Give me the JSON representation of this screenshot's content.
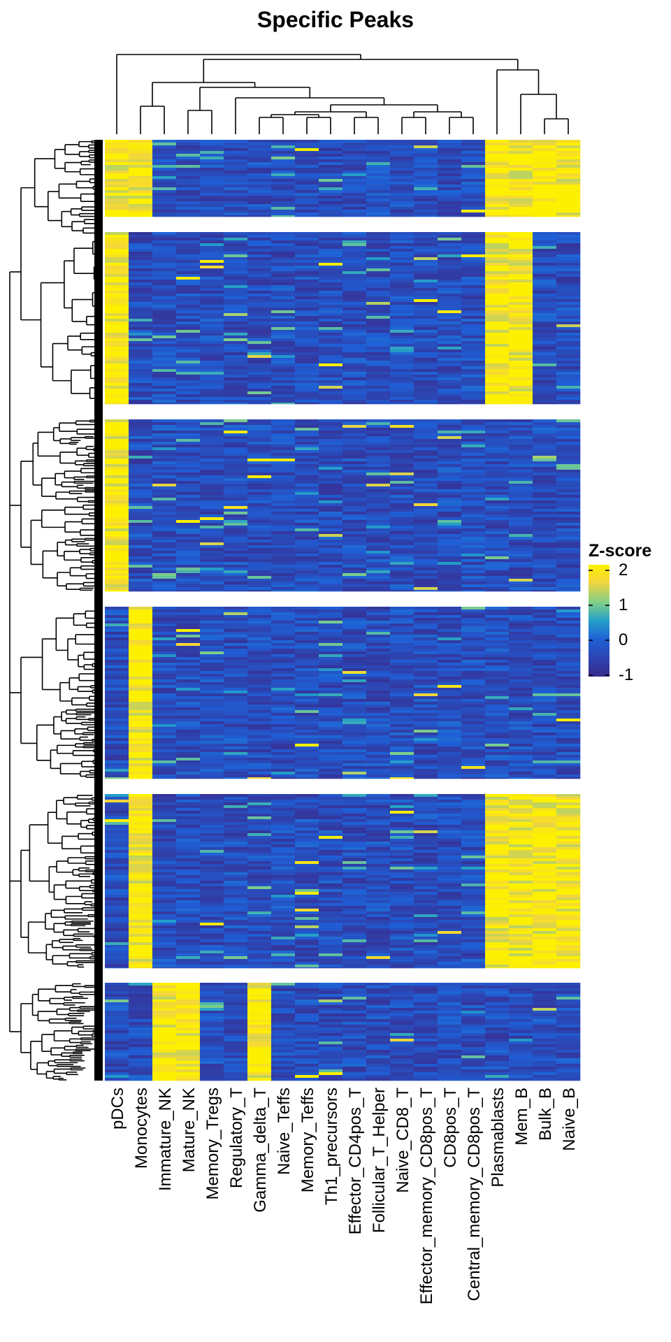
{
  "chart_data": {
    "type": "heatmap",
    "title": "Specific Peaks",
    "columns": [
      "pDCs",
      "Monocytes",
      "Immature_NK",
      "Mature_NK",
      "Memory_Tregs",
      "Regulatory_T",
      "Gamma_delta_T",
      "Naive_Teffs",
      "Memory_Teffs",
      "Th1_precursors",
      "Effector_CD4pos_T",
      "Follicular_T_Helper",
      "Naive_CD8_T",
      "Effector_memory_CD8pos_T",
      "CD8pos_T",
      "Central_memory_CD8pos_T",
      "Plasmablasts",
      "Mem_B",
      "Bulk_B",
      "Naive_B"
    ],
    "row_clusters": [
      {
        "cluster": 1,
        "high_columns": [
          "pDCs",
          "Monocytes",
          "Plasmablasts",
          "Mem_B",
          "Bulk_B",
          "Naive_B"
        ]
      },
      {
        "cluster": 2,
        "high_columns": [
          "pDCs",
          "Plasmablasts",
          "Mem_B"
        ]
      },
      {
        "cluster": 3,
        "high_columns": [
          "pDCs"
        ]
      },
      {
        "cluster": 4,
        "high_columns": [
          "Monocytes"
        ]
      },
      {
        "cluster": 5,
        "high_columns": [
          "Monocytes",
          "Plasmablasts",
          "Mem_B",
          "Bulk_B",
          "Naive_B"
        ]
      },
      {
        "cluster": 6,
        "high_columns": [
          "Immature_NK",
          "Mature_NK",
          "Gamma_delta_T"
        ]
      }
    ],
    "legend": {
      "title": "Z-score",
      "ticks": [
        "2",
        "1",
        "0",
        "-1"
      ],
      "range": [
        -1,
        2
      ],
      "colors": [
        "#3a2a8c",
        "#1f5fd6",
        "#23a0c8",
        "#7fcf8a",
        "#f5d63a",
        "#fdf000"
      ]
    },
    "row_dendrogram": true,
    "column_dendrogram": true
  }
}
